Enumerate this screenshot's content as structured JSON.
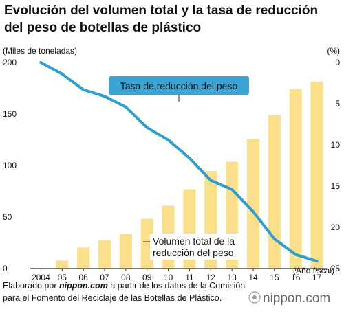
{
  "title_lines": [
    "Evolución del volumen total y la tasa de reducción",
    "del peso de botellas de plástico"
  ],
  "source_lines": [
    "Elaborado por nippon.com a partir de los datos de la Comisión",
    "para el Fomento del Reciclaje de las Botellas de Plástico."
  ],
  "brand": "nippon.com",
  "chart_data": {
    "type": "bar+line",
    "categories": [
      "2004",
      "05",
      "06",
      "07",
      "08",
      "09",
      "10",
      "11",
      "12",
      "13",
      "14",
      "15",
      "16",
      "17"
    ],
    "x_axis_unit": "(Año fiscal)",
    "series": [
      {
        "name": "Volumen total de la reducción del peso",
        "type": "bar",
        "axis": "left",
        "values": [
          0,
          7.8,
          20.4,
          27.4,
          33.6,
          48.3,
          61.1,
          77.0,
          94.7,
          103.7,
          125.8,
          148.8,
          174.2,
          181.5
        ]
      },
      {
        "name": "Tasa de reducción del peso",
        "type": "line",
        "axis": "right",
        "values": [
          0,
          1.4,
          3.3,
          4.1,
          5.4,
          7.9,
          9.4,
          11.6,
          14.3,
          15.4,
          18.1,
          21.4,
          23.3,
          24.1
        ]
      }
    ],
    "y_left": {
      "label": "(Miles de toneladas)",
      "min": 0,
      "max": 200,
      "ticks": [
        0,
        50,
        100,
        150,
        200
      ],
      "tick_labels": [
        "0",
        "50",
        "100",
        "150",
        "200"
      ]
    },
    "y_right": {
      "label": "(%)",
      "min": 0,
      "max": 25,
      "inverted": true,
      "ticks": [
        0,
        5,
        10,
        15,
        20,
        25
      ],
      "tick_labels": [
        "0",
        "5",
        "10",
        "15",
        "20",
        "25"
      ]
    },
    "annotations": {
      "line_label": "Tasa de reducción del peso",
      "bar_label_lines": [
        "Volumen total de la",
        "reducción del peso"
      ]
    },
    "colors": {
      "bar": "#fbdf8b",
      "line": "#2b9fd1",
      "line_label_bg": "#3aa5d4",
      "line_label_text": "#ffffff",
      "axis": "#333333"
    },
    "grid": false,
    "legend": "inline annotations"
  }
}
